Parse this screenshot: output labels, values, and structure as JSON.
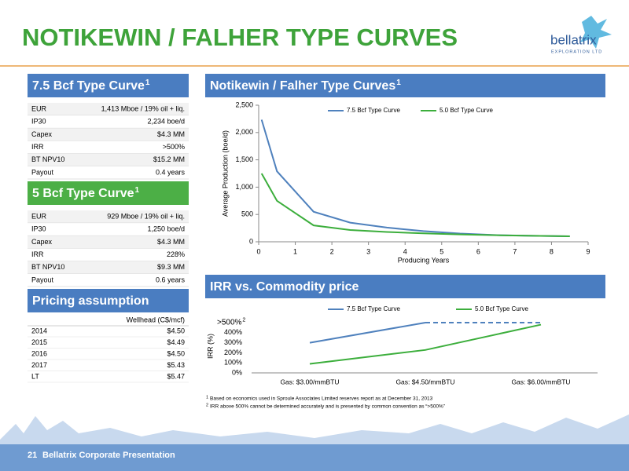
{
  "header": {
    "title": "NOTIKEWIN / FALHER TYPE CURVES",
    "logo": "bellatrix",
    "logo_sub": "EXPLORATION LTD"
  },
  "tables": [
    {
      "title": "7.5 Bcf Type Curve",
      "sup": "1",
      "rows": [
        [
          "EUR",
          "1,413 Mboe / 19% oil + liq."
        ],
        [
          "IP30",
          "2,234 boe/d"
        ],
        [
          "Capex",
          "$4.3 MM"
        ],
        [
          "IRR",
          ">500%"
        ],
        [
          "BT NPV10",
          "$15.2 MM"
        ],
        [
          "Payout",
          "0.4 years"
        ]
      ]
    },
    {
      "title": "5 Bcf Type Curve",
      "sup": "1",
      "rows": [
        [
          "EUR",
          "929 Mboe / 19% oil + liq."
        ],
        [
          "IP30",
          "1,250 boe/d"
        ],
        [
          "Capex",
          "$4.3 MM"
        ],
        [
          "IRR",
          "228%"
        ],
        [
          "BT NPV10",
          "$9.3 MM"
        ],
        [
          "Payout",
          "0.6 years"
        ]
      ]
    }
  ],
  "pricing": {
    "title": "Pricing assumption",
    "column": "Wellhead (C$/mcf)",
    "rows": [
      [
        "2014",
        "$4.50"
      ],
      [
        "2015",
        "$4.49"
      ],
      [
        "2016",
        "$4.50"
      ],
      [
        "2017",
        "$5.43"
      ],
      [
        "LT",
        "$5.47"
      ]
    ]
  },
  "chart_data": [
    {
      "type": "line",
      "title": "Notikewin / Falher Type Curves",
      "title_sup": "1",
      "x_label": "Producing Years",
      "y_label": "Average Production (boe/d)",
      "x": [
        0.08,
        0.5,
        1.5,
        2.5,
        3.5,
        4.5,
        5.5,
        6.5,
        7.5,
        8.5
      ],
      "series": [
        {
          "name": "7.5 Bcf Type Curve",
          "color": "#4f81bd",
          "values": [
            2234,
            1290,
            550,
            350,
            260,
            195,
            150,
            122,
            110,
            100
          ]
        },
        {
          "name": "5.0 Bcf Type Curve",
          "color": "#3cae3c",
          "values": [
            1250,
            750,
            300,
            215,
            180,
            155,
            135,
            120,
            110,
            100
          ]
        }
      ],
      "xlim": [
        0,
        9
      ],
      "xticks": [
        0,
        1,
        2,
        3,
        4,
        5,
        6,
        7,
        8,
        9
      ],
      "ylim": [
        0,
        2500
      ],
      "yticks": [
        0,
        500,
        {
          "value": 1000,
          "label": "1,000"
        },
        {
          "value": 1500,
          "label": "1,500"
        },
        {
          "value": 2000,
          "label": "2,000"
        },
        {
          "value": 2500,
          "label": "2,500"
        }
      ]
    },
    {
      "type": "line",
      "title": "IRR vs. Commodity price",
      "y_label": "IRR (%)",
      "categories": [
        "Gas: $3.00/mmBTU",
        "Gas: $4.50/mmBTU",
        "Gas: $6.00/mmBTU"
      ],
      "series": [
        {
          "name": "7.5 Bcf Type Curve",
          "color": "#4f81bd",
          "values": [
            300,
            500,
            500
          ],
          "dashed_from": 1
        },
        {
          "name": "5.0 Bcf Type Curve",
          "color": "#3cae3c",
          "values": [
            90,
            228,
            480
          ]
        }
      ],
      "ylim": [
        0,
        500
      ],
      "yticks": [
        {
          "value": 0,
          "label": "0%"
        },
        {
          "value": 100,
          "label": "100%"
        },
        {
          "value": 200,
          "label": "200%"
        },
        {
          "value": 300,
          "label": "300%"
        },
        {
          "value": 400,
          "label": "400%"
        },
        {
          "value": 500,
          "label": ">500%",
          "sup": "2"
        }
      ]
    }
  ],
  "footnotes": [
    {
      "mark": "1",
      "text": "Based on economics used in Sproule Associates Limited reserves report as at December 31, 2013"
    },
    {
      "mark": "2",
      "text": "IRR above 500% cannot be determined accurately and is presented by common convention as “>500%”"
    }
  ],
  "footer": {
    "page": "21",
    "text": "Bellatrix Corporate Presentation"
  }
}
